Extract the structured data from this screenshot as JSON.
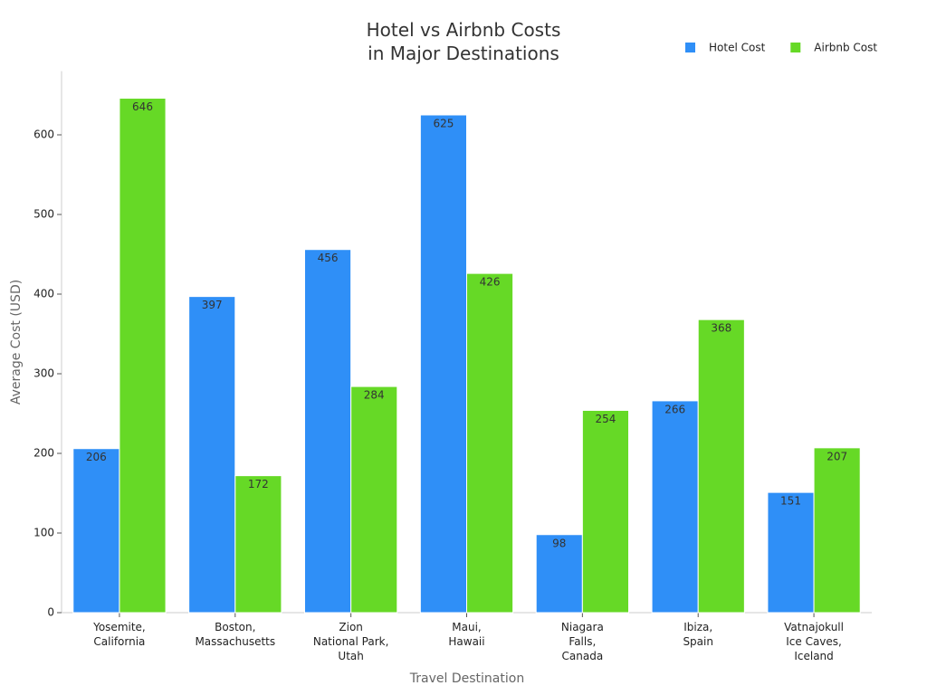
{
  "chart_data": {
    "type": "bar",
    "title": "Hotel vs Airbnb Costs\nin Major Destinations",
    "x_label": "Travel Destination",
    "y_label": "Average Cost (USD)",
    "categories": [
      "Yosemite,\nCalifornia",
      "Boston,\nMassachusetts",
      "Zion\nNational Park,\nUtah",
      "Maui,\nHawaii",
      "Niagara\nFalls,\nCanada",
      "Ibiza,\nSpain",
      "Vatnajokull\nIce Caves,\nIceland"
    ],
    "series": [
      {
        "name": "Hotel Cost",
        "color": "#2f8ff7",
        "values": [
          206,
          397,
          456,
          625,
          98,
          266,
          151
        ]
      },
      {
        "name": "Airbnb Cost",
        "color": "#66d926",
        "values": [
          646,
          172,
          284,
          426,
          254,
          368,
          207
        ]
      }
    ],
    "ylim": [
      0,
      680
    ],
    "yticks": [
      0,
      100,
      200,
      300,
      400,
      500,
      600
    ],
    "legend": "top-right",
    "grid": false
  }
}
